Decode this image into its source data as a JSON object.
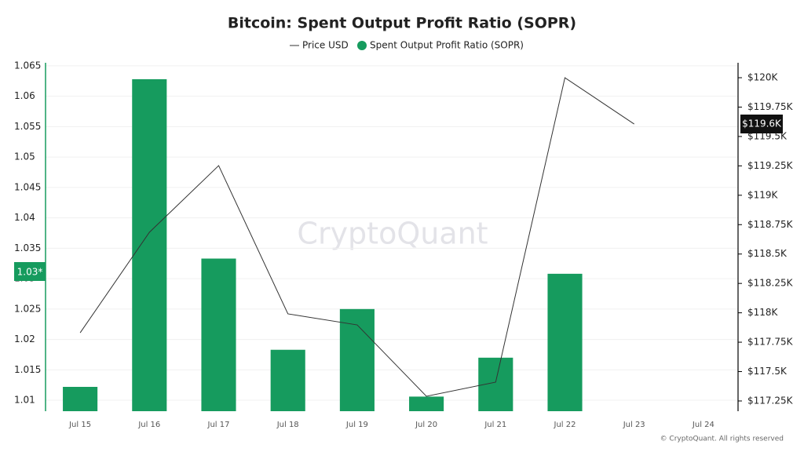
{
  "chart_data": {
    "type": "bar-line",
    "title": "Bitcoin: Spent Output Profit Ratio (SOPR)",
    "watermark": "CryptoQuant",
    "copyright": "© CryptoQuant. All rights reserved",
    "categories": [
      "Jul 15",
      "Jul 16",
      "Jul 17",
      "Jul 18",
      "Jul 19",
      "Jul 20",
      "Jul 21",
      "Jul 22",
      "Jul 23",
      "Jul 24"
    ],
    "series": [
      {
        "name": "Price USD",
        "type": "line",
        "axis": "y2",
        "color": "#333333",
        "values": [
          117830,
          118685,
          119252,
          117991,
          117897,
          117290,
          117410,
          120000,
          119606,
          null
        ]
      },
      {
        "name": "Spent Output Profit Ratio (SOPR)",
        "type": "bar",
        "color": "#169b5e",
        "values": [
          1.0122,
          1.0628,
          1.0333,
          1.0183,
          1.025,
          1.0106,
          1.017,
          1.0308,
          null,
          null
        ]
      }
    ],
    "ylim": [
      1.0082,
      1.0655
    ],
    "yticks": [
      1.01,
      1.015,
      1.02,
      1.025,
      1.03,
      1.035,
      1.04,
      1.045,
      1.05,
      1.055,
      1.06,
      1.065
    ],
    "y2lim": [
      117163,
      120127
    ],
    "y2ticks": [
      {
        "value": 117250,
        "label": "$117.25K"
      },
      {
        "value": 117500,
        "label": "$117.5K"
      },
      {
        "value": 117750,
        "label": "$117.75K"
      },
      {
        "value": 118000,
        "label": "$118K"
      },
      {
        "value": 118250,
        "label": "$118.25K"
      },
      {
        "value": 118500,
        "label": "$118.5K"
      },
      {
        "value": 118750,
        "label": "$118.75K"
      },
      {
        "value": 119000,
        "label": "$119K"
      },
      {
        "value": 119250,
        "label": "$119.25K"
      },
      {
        "value": 119500,
        "label": "$119.5K"
      },
      {
        "value": 119750,
        "label": "$119.75K"
      },
      {
        "value": 120000,
        "label": "$120K"
      }
    ],
    "y_marker_label": "1.03*",
    "y2_marker_label": "$119.6K",
    "grid": true
  }
}
